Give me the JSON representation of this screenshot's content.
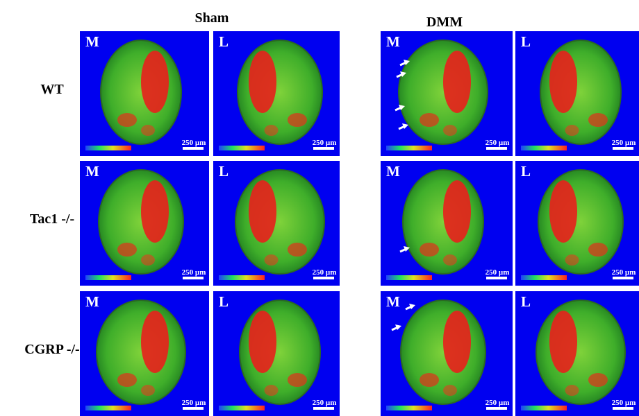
{
  "columns": [
    {
      "title": "Sham"
    },
    {
      "title": "DMM"
    }
  ],
  "rows": [
    {
      "label": "WT",
      "panels": [
        {
          "view": "M",
          "scale": "250 µm"
        },
        {
          "view": "L",
          "scale": "250 µm"
        },
        {
          "view": "M",
          "scale": "250 µm"
        },
        {
          "view": "L",
          "scale": "250 µm"
        }
      ]
    },
    {
      "label": "Tac1 -/-",
      "panels": [
        {
          "view": "M",
          "scale": "250 µm"
        },
        {
          "view": "L",
          "scale": "250 µm"
        },
        {
          "view": "M",
          "scale": "250 µm"
        },
        {
          "view": "L",
          "scale": "250 µm"
        }
      ]
    },
    {
      "label": "CGRP -/-",
      "panels": [
        {
          "view": "M",
          "scale": "250 µm"
        },
        {
          "view": "L",
          "scale": "250 µm"
        },
        {
          "view": "M",
          "scale": "250 µm"
        },
        {
          "view": "L",
          "scale": "250 µm"
        }
      ]
    }
  ]
}
